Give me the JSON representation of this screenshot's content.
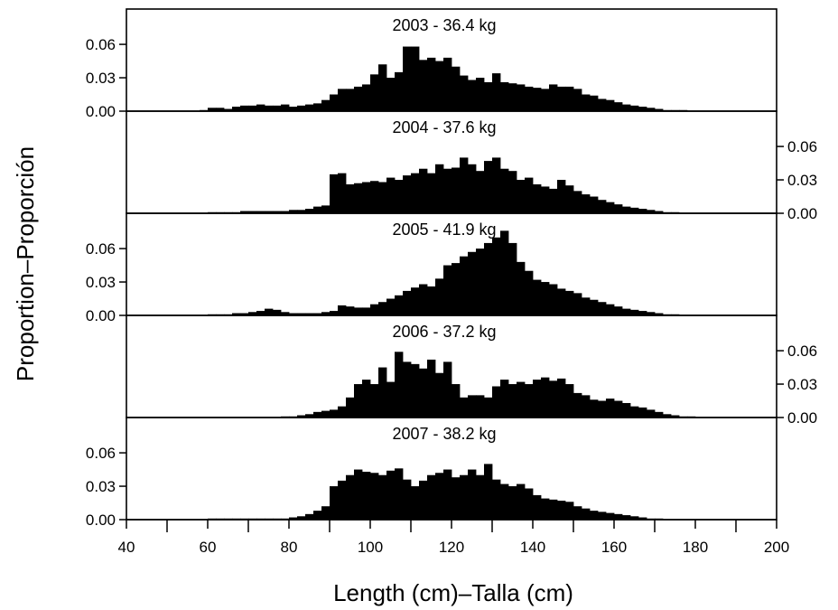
{
  "chart_data": {
    "type": "bar",
    "xlabel": "Length (cm)–Talla (cm)",
    "ylabel": "Proportion–Proporción",
    "xlim": [
      40,
      200
    ],
    "x_ticks": [
      40,
      60,
      80,
      100,
      120,
      140,
      160,
      180,
      200
    ],
    "ylim": [
      0,
      0.08
    ],
    "y_ticks": [
      "0.00",
      "0.03",
      "0.06"
    ],
    "bin_start": 40,
    "bin_width": 2,
    "panels": [
      {
        "title": "2003 - 36.4 kg",
        "y_axis_side": "left",
        "values": [
          0,
          0,
          0,
          0,
          0,
          0,
          0,
          0,
          0,
          0.001,
          0.003,
          0.003,
          0.002,
          0.004,
          0.005,
          0.005,
          0.006,
          0.005,
          0.005,
          0.006,
          0.004,
          0.005,
          0.006,
          0.007,
          0.01,
          0.015,
          0.02,
          0.02,
          0.022,
          0.024,
          0.033,
          0.042,
          0.03,
          0.035,
          0.058,
          0.058,
          0.046,
          0.048,
          0.045,
          0.048,
          0.04,
          0.032,
          0.028,
          0.03,
          0.026,
          0.034,
          0.026,
          0.025,
          0.024,
          0.022,
          0.021,
          0.02,
          0.024,
          0.022,
          0.022,
          0.02,
          0.015,
          0.014,
          0.011,
          0.01,
          0.008,
          0.006,
          0.005,
          0.004,
          0.003,
          0.002,
          0.001,
          0.001,
          0.001,
          0,
          0,
          0,
          0,
          0,
          0,
          0,
          0,
          0,
          0,
          0
        ]
      },
      {
        "title": "2004 - 37.6 kg",
        "y_axis_side": "right",
        "values": [
          0,
          0,
          0,
          0,
          0,
          0,
          0,
          0,
          0,
          0,
          0.001,
          0.001,
          0.001,
          0.001,
          0.002,
          0.002,
          0.002,
          0.002,
          0.002,
          0.002,
          0.003,
          0.003,
          0.004,
          0.006,
          0.007,
          0.035,
          0.036,
          0.026,
          0.027,
          0.028,
          0.029,
          0.028,
          0.032,
          0.03,
          0.034,
          0.036,
          0.04,
          0.036,
          0.044,
          0.04,
          0.041,
          0.05,
          0.044,
          0.038,
          0.047,
          0.05,
          0.04,
          0.038,
          0.03,
          0.032,
          0.026,
          0.024,
          0.022,
          0.03,
          0.025,
          0.02,
          0.017,
          0.015,
          0.012,
          0.01,
          0.008,
          0.006,
          0.005,
          0.004,
          0.003,
          0.002,
          0.001,
          0.001,
          0,
          0,
          0,
          0,
          0,
          0,
          0,
          0,
          0,
          0,
          0,
          0
        ]
      },
      {
        "title": "2005 - 41.9 kg",
        "y_axis_side": "left",
        "values": [
          0,
          0,
          0,
          0,
          0,
          0,
          0,
          0,
          0,
          0,
          0.001,
          0.001,
          0.001,
          0.002,
          0.002,
          0.003,
          0.004,
          0.006,
          0.005,
          0.003,
          0.002,
          0.002,
          0.002,
          0.002,
          0.003,
          0.004,
          0.009,
          0.008,
          0.007,
          0.007,
          0.01,
          0.012,
          0.015,
          0.018,
          0.022,
          0.025,
          0.028,
          0.026,
          0.033,
          0.045,
          0.047,
          0.053,
          0.057,
          0.06,
          0.065,
          0.07,
          0.076,
          0.065,
          0.048,
          0.04,
          0.032,
          0.03,
          0.028,
          0.024,
          0.022,
          0.02,
          0.016,
          0.014,
          0.012,
          0.01,
          0.008,
          0.006,
          0.005,
          0.004,
          0.003,
          0.002,
          0.001,
          0.001,
          0,
          0,
          0,
          0,
          0,
          0,
          0,
          0,
          0,
          0,
          0,
          0
        ]
      },
      {
        "title": "2006 - 37.2 kg",
        "y_axis_side": "right",
        "values": [
          0,
          0,
          0,
          0,
          0,
          0,
          0,
          0,
          0,
          0,
          0,
          0,
          0,
          0,
          0,
          0,
          0,
          0,
          0,
          0.001,
          0.001,
          0.002,
          0.003,
          0.005,
          0.006,
          0.007,
          0.01,
          0.018,
          0.03,
          0.034,
          0.03,
          0.045,
          0.032,
          0.059,
          0.05,
          0.048,
          0.044,
          0.052,
          0.04,
          0.05,
          0.03,
          0.018,
          0.02,
          0.02,
          0.018,
          0.028,
          0.034,
          0.03,
          0.032,
          0.03,
          0.034,
          0.036,
          0.033,
          0.035,
          0.03,
          0.022,
          0.02,
          0.016,
          0.015,
          0.017,
          0.015,
          0.013,
          0.01,
          0.009,
          0.007,
          0.005,
          0.003,
          0.002,
          0.001,
          0.001,
          0,
          0,
          0,
          0,
          0,
          0,
          0,
          0,
          0,
          0
        ]
      },
      {
        "title": "2007 - 38.2 kg",
        "y_axis_side": "left",
        "values": [
          0,
          0,
          0,
          0,
          0,
          0,
          0,
          0,
          0,
          0,
          0.001,
          0.001,
          0.001,
          0.001,
          0.001,
          0.001,
          0.001,
          0.001,
          0.001,
          0.001,
          0.002,
          0.003,
          0.005,
          0.008,
          0.012,
          0.03,
          0.035,
          0.04,
          0.045,
          0.043,
          0.042,
          0.04,
          0.044,
          0.046,
          0.036,
          0.03,
          0.035,
          0.04,
          0.042,
          0.045,
          0.038,
          0.04,
          0.045,
          0.04,
          0.05,
          0.036,
          0.032,
          0.03,
          0.032,
          0.028,
          0.022,
          0.019,
          0.018,
          0.017,
          0.016,
          0.012,
          0.01,
          0.008,
          0.007,
          0.006,
          0.005,
          0.004,
          0.003,
          0.002,
          0.001,
          0.001,
          0,
          0,
          0,
          0,
          0,
          0,
          0,
          0,
          0,
          0,
          0,
          0,
          0,
          0
        ]
      }
    ]
  }
}
